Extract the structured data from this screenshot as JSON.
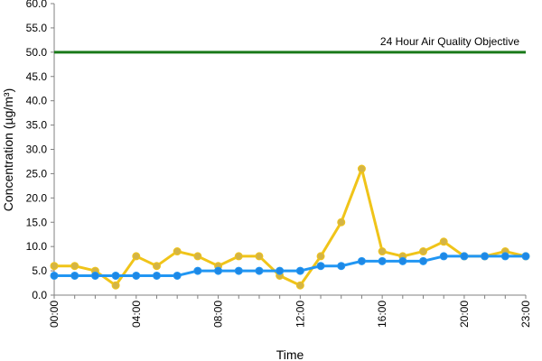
{
  "chart_data": {
    "type": "line",
    "xlabel": "Time",
    "ylabel": "Concentration (µg/m³)",
    "ylim": [
      0,
      60
    ],
    "yticks": [
      "0.0",
      "5.0",
      "10.0",
      "15.0",
      "20.0",
      "25.0",
      "30.0",
      "35.0",
      "40.0",
      "45.0",
      "50.0",
      "55.0",
      "60.0"
    ],
    "x": [
      0,
      1,
      2,
      3,
      4,
      5,
      6,
      7,
      8,
      9,
      10,
      11,
      12,
      13,
      14,
      15,
      16,
      17,
      18,
      19,
      20,
      21,
      22,
      23
    ],
    "xticks": [
      {
        "hour": 0,
        "label": "00:00"
      },
      {
        "hour": 4,
        "label": "04:00"
      },
      {
        "hour": 8,
        "label": "08:00"
      },
      {
        "hour": 12,
        "label": "12:00"
      },
      {
        "hour": 16,
        "label": "16:00"
      },
      {
        "hour": 20,
        "label": "20:00"
      },
      {
        "hour": 23,
        "label": "23:00"
      }
    ],
    "grid": false,
    "series": [
      {
        "color": "#f0c419",
        "marker": "#d4b445",
        "values": [
          6,
          6,
          5,
          2,
          8,
          6,
          9,
          8,
          6,
          8,
          8,
          4,
          2,
          8,
          15,
          26,
          9,
          8,
          9,
          11,
          8,
          8,
          9,
          8
        ]
      },
      {
        "color": "#2196f3",
        "marker": "#1e88e5",
        "values": [
          4,
          4,
          4,
          4,
          4,
          4,
          4,
          5,
          5,
          5,
          5,
          5,
          5,
          6,
          6,
          7,
          7,
          7,
          7,
          8,
          8,
          8,
          8,
          8
        ]
      }
    ],
    "reference_line": {
      "value": 50,
      "label": "24 Hour Air Quality Objective",
      "color": "#1a7a1a"
    }
  }
}
